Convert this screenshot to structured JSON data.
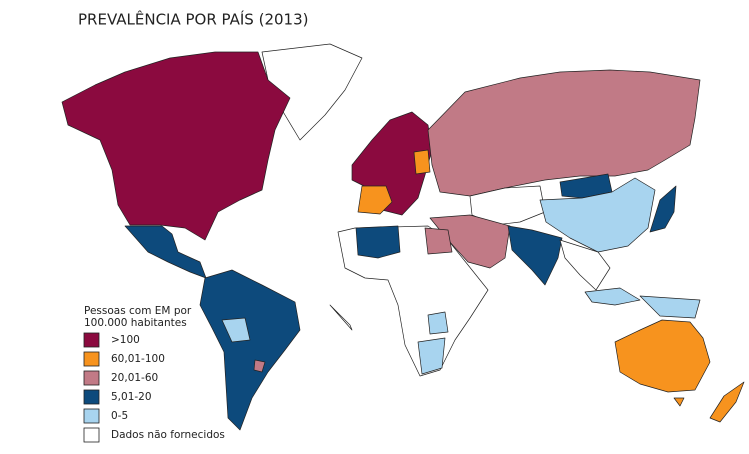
{
  "title": "PREVALÊNCIA POR PAÍS (2013)",
  "legend": {
    "title_lines": [
      "Pessoas com EM por",
      "100.000 habitantes"
    ],
    "items": [
      {
        "label": ">100",
        "color": "#8b0a3f"
      },
      {
        "label": "60,01-100",
        "color": "#f7931e"
      },
      {
        "label": "20,01-60",
        "color": "#c17a86"
      },
      {
        "label": "5,01-20",
        "color": "#0d4a7c"
      },
      {
        "label": "0-5",
        "color": "#a8d4ef"
      },
      {
        "label": "Dados não fornecidos",
        "color": "#ffffff"
      }
    ]
  }
}
